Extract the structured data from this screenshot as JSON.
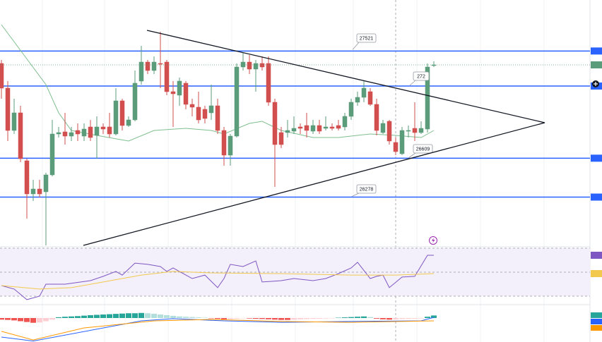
{
  "chart_data": [
    {
      "type": "candlestick",
      "ylim": [
        25855,
        27955
      ],
      "up_color": "#5b9c7a",
      "down_color": "#d24f4f",
      "open": [
        27415,
        27205,
        26845,
        26995,
        26587,
        26305,
        26347,
        26323,
        26467,
        26815,
        26833,
        26797,
        26845,
        26797,
        26875,
        26803,
        26875,
        26875,
        26815,
        27097,
        26887,
        26935,
        27265,
        27427,
        27355,
        27415,
        27427,
        27175,
        27145,
        27247,
        27067,
        27043,
        27025,
        26995,
        27055,
        26845,
        26635,
        26797,
        27385,
        27427,
        27367,
        27415,
        27415,
        27085,
        26827,
        26827,
        26839,
        26875,
        26887,
        26839,
        26887,
        26863,
        26875,
        26887,
        26875,
        26965,
        27085,
        27127,
        27175,
        27067,
        26827,
        26923,
        26743,
        26647,
        26839,
        26863,
        26827,
        26857,
        27397
      ],
      "high": [
        27445,
        27265,
        27115,
        27055,
        26605,
        26425,
        26425,
        26485,
        26935,
        26875,
        26995,
        26875,
        26905,
        26905,
        26935,
        26965,
        26905,
        26995,
        27205,
        27115,
        26965,
        27355,
        27565,
        27445,
        27475,
        27685,
        27445,
        27265,
        27295,
        27265,
        27115,
        27175,
        27055,
        27235,
        27115,
        26875,
        26815,
        27415,
        27505,
        27487,
        27445,
        27475,
        27475,
        27115,
        26875,
        26935,
        26965,
        26905,
        26995,
        26935,
        26935,
        26965,
        26905,
        26935,
        26995,
        27115,
        27175,
        27265,
        27205,
        27115,
        26935,
        26935,
        26785,
        26875,
        26887,
        27085,
        26923,
        27415,
        27433
      ],
      "low": [
        27115,
        26755,
        26815,
        26575,
        26095,
        26245,
        26275,
        25867,
        26455,
        26785,
        26725,
        26755,
        26755,
        26755,
        26755,
        26605,
        26815,
        26785,
        26803,
        26845,
        26875,
        26923,
        27235,
        27325,
        27325,
        27205,
        27145,
        26875,
        27055,
        27025,
        26965,
        26905,
        26905,
        26935,
        26815,
        26545,
        26545,
        26785,
        27355,
        27325,
        27175,
        27355,
        27055,
        26365,
        26695,
        26785,
        26815,
        26815,
        26785,
        26815,
        26815,
        26845,
        26845,
        26845,
        26845,
        26935,
        27055,
        27085,
        27055,
        26803,
        26815,
        26725,
        26635,
        26635,
        26785,
        26755,
        26815,
        26827,
        27385
      ],
      "close": [
        27205,
        26845,
        26995,
        26605,
        26305,
        26347,
        26305,
        26467,
        26815,
        26827,
        26797,
        26827,
        26815,
        26857,
        26785,
        26875,
        26857,
        26815,
        27097,
        26887,
        26935,
        27247,
        27427,
        27355,
        27427,
        27409,
        27175,
        27157,
        27265,
        27067,
        27043,
        26935,
        26947,
        27055,
        26845,
        26635,
        26797,
        27385,
        27427,
        27367,
        27415,
        27385,
        27085,
        26725,
        26725,
        26845,
        26863,
        26863,
        26845,
        26887,
        26839,
        26875,
        26863,
        26863,
        26965,
        27085,
        27127,
        27205,
        27067,
        26845,
        26905,
        26755,
        26665,
        26845,
        26845,
        26827,
        26863,
        27385,
        27403
      ],
      "sma": {
        "color": "#7fbf8f",
        "x": [
          0,
          7,
          9,
          11,
          15,
          20,
          24,
          29,
          33,
          35,
          39,
          41,
          44,
          49,
          53,
          58,
          62,
          66,
          68
        ],
        "values": [
          27745,
          27235,
          26995,
          26845,
          26803,
          26755,
          26845,
          26863,
          26845,
          26815,
          26905,
          26923,
          26845,
          26785,
          26785,
          26815,
          26803,
          26785,
          26845
        ]
      },
      "level_color": "#2962ff",
      "levels": [
        27521,
        27223,
        26609,
        26278
      ],
      "partial_label": "272"
    },
    {
      "type": "rsi",
      "ylim": [
        24.1,
        74.1
      ],
      "levels": [
        30,
        50,
        70
      ],
      "series": [
        {
          "color": "#7e57c2",
          "x": [
            0,
            2,
            4,
            6,
            7,
            10,
            14,
            16,
            18,
            19,
            21,
            23,
            25,
            26,
            27,
            30,
            32,
            34,
            35,
            36,
            38,
            40,
            41,
            44,
            46,
            49,
            51,
            53,
            55,
            56,
            58,
            59,
            60,
            61,
            63,
            65,
            67,
            68
          ],
          "values": [
            38.8,
            35.9,
            27.1,
            30,
            40,
            40,
            42.9,
            46.5,
            50.6,
            47.6,
            57.6,
            56.5,
            54.7,
            50.6,
            53.5,
            44.7,
            47.6,
            37.1,
            44.7,
            56.5,
            54.7,
            59.4,
            41.8,
            42.9,
            44.7,
            42.9,
            44.7,
            48.8,
            53.5,
            58.2,
            44.7,
            46.5,
            47.6,
            37.1,
            45.9,
            46.5,
            64.1,
            64.1
          ]
        },
        {
          "color": "#f2c94c",
          "x": [
            0,
            6,
            11,
            16,
            22,
            27,
            33,
            44,
            55,
            62,
            68
          ],
          "values": [
            38.8,
            35.9,
            37.1,
            41.8,
            47.6,
            50.6,
            49.4,
            48.8,
            47.6,
            47.6,
            48.8
          ]
        }
      ]
    },
    {
      "type": "macd",
      "ylim": [
        -151,
        71
      ],
      "histogram": [
        -10,
        -12,
        -15,
        -20,
        -25,
        -30,
        -28,
        -20,
        -10,
        5,
        8,
        10,
        12,
        15,
        18,
        20,
        22,
        24,
        26,
        28,
        30,
        30,
        32,
        30,
        27,
        22,
        18,
        14,
        10,
        8,
        6,
        4,
        2,
        -2,
        -5,
        -8,
        -6,
        -4,
        -2,
        -3,
        -5,
        -6,
        -8,
        -10,
        -12,
        -12,
        -10,
        -8,
        -6,
        -5,
        -4,
        -3,
        -2,
        2,
        4,
        6,
        8,
        10,
        6,
        -4,
        -8,
        -10,
        -8,
        -6,
        -5,
        -4,
        -3,
        8,
        16
      ],
      "histogram_colors": [
        "#26a69a",
        "#b2dfdb",
        "#ef5350",
        "#ffcdd2"
      ],
      "series": [
        {
          "color": "#2962ff",
          "x": [
            0,
            5,
            22,
            27,
            35,
            44,
            55,
            66,
            68
          ],
          "values": [
            -120,
            -145,
            -18,
            -4,
            -18,
            -27,
            -22,
            -18,
            4
          ]
        },
        {
          "color": "#ff9800",
          "x": [
            0,
            5,
            13,
            24,
            33,
            44,
            55,
            68
          ],
          "values": [
            -84,
            -138,
            -62,
            -18,
            -9,
            -22,
            -27,
            -18
          ]
        }
      ]
    }
  ]
}
